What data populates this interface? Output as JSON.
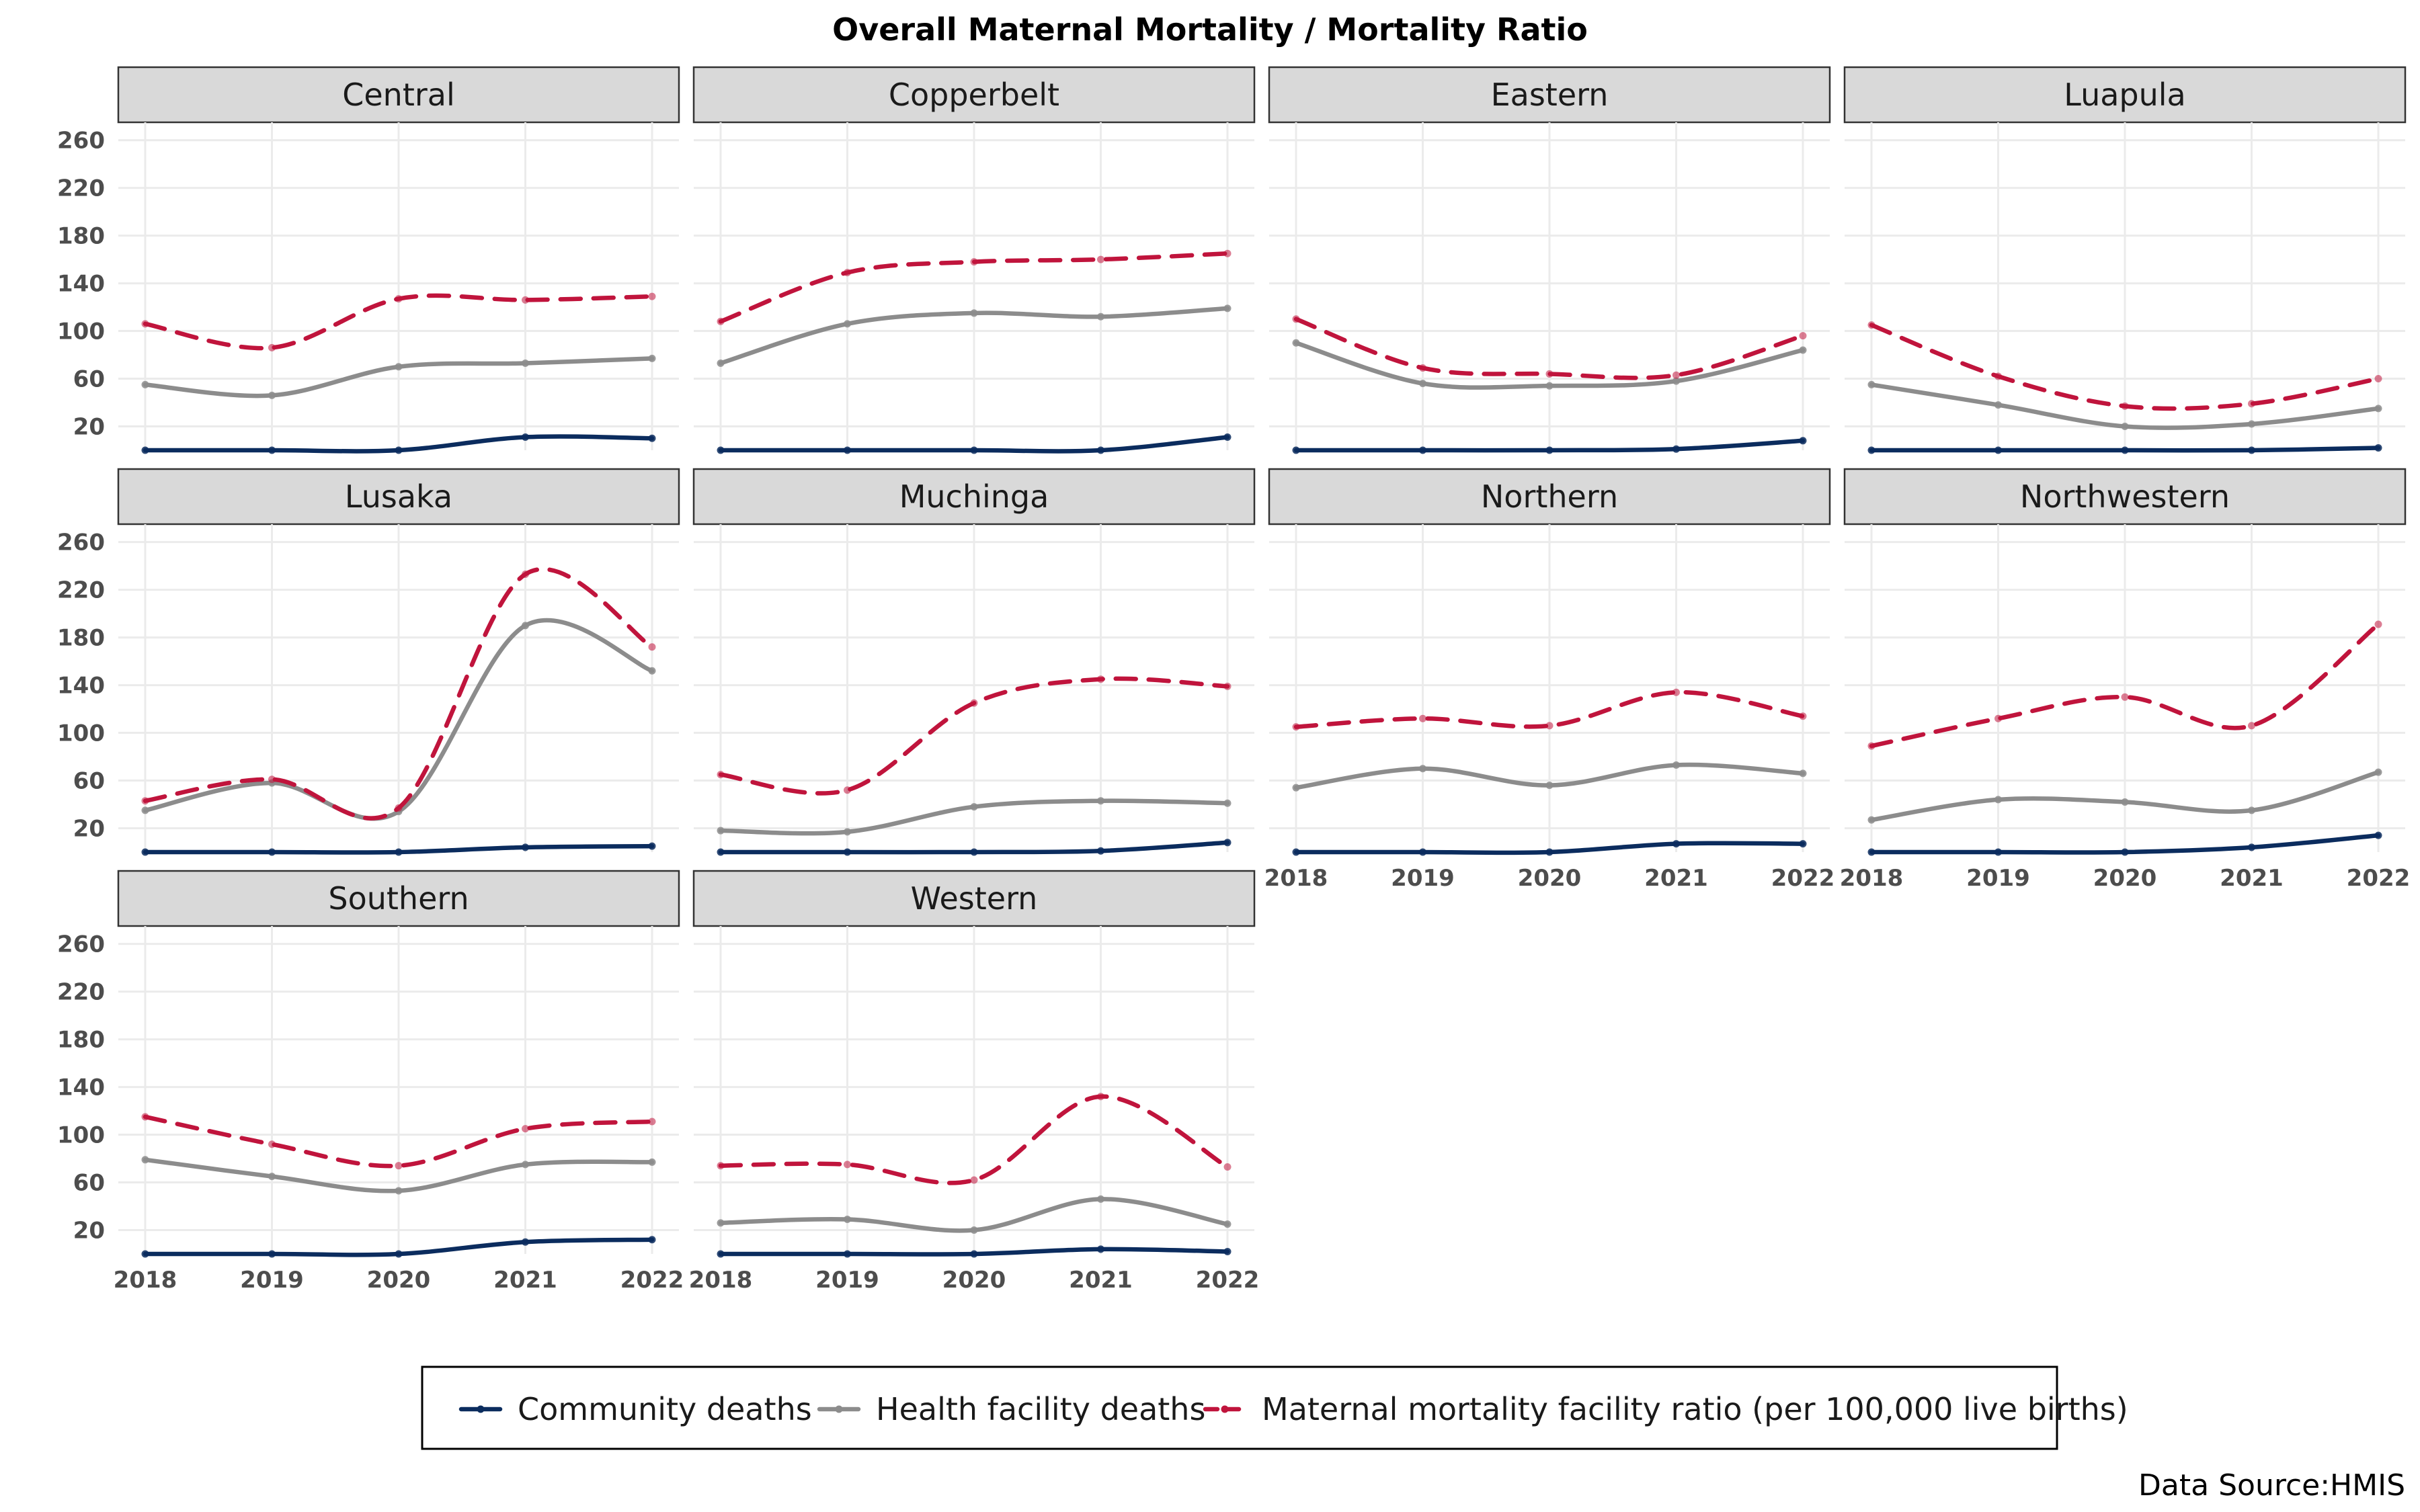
{
  "chart_data": {
    "type": "line",
    "title": "Overall Maternal Mortality / Mortality Ratio",
    "source": "Data Source:HMIS",
    "x": [
      "2018",
      "2019",
      "2020",
      "2021",
      "2022"
    ],
    "y_ticks": [
      "20",
      "60",
      "100",
      "140",
      "180",
      "220",
      "260"
    ],
    "ylim": [
      0,
      275
    ],
    "grid": true,
    "legend_position": "bottom",
    "series_styles": [
      {
        "name": "Community deaths",
        "color": "#0b2c5e",
        "dash": "solid"
      },
      {
        "name": "Health facility deaths",
        "color": "#8c8c8c",
        "dash": "solid"
      },
      {
        "name": "Maternal mortality facility ratio (per 100,000 live births)",
        "color": "#c0143c",
        "dash": "dashed"
      }
    ],
    "panels": [
      {
        "name": "Central",
        "series": [
          {
            "name": "Community deaths",
            "values": [
              0,
              0,
              0,
              11,
              10
            ]
          },
          {
            "name": "Health facility deaths",
            "values": [
              55,
              46,
              70,
              73,
              77
            ]
          },
          {
            "name": "Maternal mortality facility ratio (per 100,000 live births)",
            "values": [
              106,
              86,
              127,
              126,
              129
            ]
          }
        ]
      },
      {
        "name": "Copperbelt",
        "series": [
          {
            "name": "Community deaths",
            "values": [
              0,
              0,
              0,
              0,
              11
            ]
          },
          {
            "name": "Health facility deaths",
            "values": [
              73,
              106,
              115,
              112,
              119
            ]
          },
          {
            "name": "Maternal mortality facility ratio (per 100,000 live births)",
            "values": [
              108,
              149,
              158,
              160,
              165
            ]
          }
        ]
      },
      {
        "name": "Eastern",
        "series": [
          {
            "name": "Community deaths",
            "values": [
              0,
              0,
              0,
              1,
              8
            ]
          },
          {
            "name": "Health facility deaths",
            "values": [
              90,
              56,
              54,
              58,
              84
            ]
          },
          {
            "name": "Maternal mortality facility ratio (per 100,000 live births)",
            "values": [
              110,
              69,
              64,
              63,
              96
            ]
          }
        ]
      },
      {
        "name": "Luapula",
        "series": [
          {
            "name": "Community deaths",
            "values": [
              0,
              0,
              0,
              0,
              2
            ]
          },
          {
            "name": "Health facility deaths",
            "values": [
              55,
              38,
              20,
              22,
              35
            ]
          },
          {
            "name": "Maternal mortality facility ratio (per 100,000 live births)",
            "values": [
              105,
              62,
              37,
              39,
              60
            ]
          }
        ]
      },
      {
        "name": "Lusaka",
        "series": [
          {
            "name": "Community deaths",
            "values": [
              0,
              0,
              0,
              4,
              5
            ]
          },
          {
            "name": "Health facility deaths",
            "values": [
              35,
              58,
              34,
              190,
              152
            ]
          },
          {
            "name": "Maternal mortality facility ratio (per 100,000 live births)",
            "values": [
              43,
              61,
              37,
              233,
              172
            ]
          }
        ]
      },
      {
        "name": "Muchinga",
        "series": [
          {
            "name": "Community deaths",
            "values": [
              0,
              0,
              0,
              1,
              8
            ]
          },
          {
            "name": "Health facility deaths",
            "values": [
              18,
              17,
              38,
              43,
              41
            ]
          },
          {
            "name": "Maternal mortality facility ratio (per 100,000 live births)",
            "values": [
              65,
              52,
              125,
              145,
              139
            ]
          }
        ]
      },
      {
        "name": "Northern",
        "series": [
          {
            "name": "Community deaths",
            "values": [
              0,
              0,
              0,
              7,
              7
            ]
          },
          {
            "name": "Health facility deaths",
            "values": [
              54,
              70,
              56,
              73,
              66
            ]
          },
          {
            "name": "Maternal mortality facility ratio (per 100,000 live births)",
            "values": [
              105,
              112,
              106,
              134,
              114
            ]
          }
        ]
      },
      {
        "name": "Northwestern",
        "series": [
          {
            "name": "Community deaths",
            "values": [
              0,
              0,
              0,
              4,
              14
            ]
          },
          {
            "name": "Health facility deaths",
            "values": [
              27,
              44,
              42,
              35,
              67
            ]
          },
          {
            "name": "Maternal mortality facility ratio (per 100,000 live births)",
            "values": [
              89,
              112,
              130,
              106,
              191
            ]
          }
        ]
      },
      {
        "name": "Southern",
        "series": [
          {
            "name": "Community deaths",
            "values": [
              0,
              0,
              0,
              10,
              12
            ]
          },
          {
            "name": "Health facility deaths",
            "values": [
              79,
              65,
              53,
              75,
              77
            ]
          },
          {
            "name": "Maternal mortality facility ratio (per 100,000 live births)",
            "values": [
              115,
              92,
              74,
              105,
              111
            ]
          }
        ]
      },
      {
        "name": "Western",
        "series": [
          {
            "name": "Community deaths",
            "values": [
              0,
              0,
              0,
              4,
              2
            ]
          },
          {
            "name": "Health facility deaths",
            "values": [
              26,
              29,
              20,
              46,
              25
            ]
          },
          {
            "name": "Maternal mortality facility ratio (per 100,000 live births)",
            "values": [
              74,
              75,
              62,
              132,
              73
            ]
          }
        ]
      }
    ]
  }
}
